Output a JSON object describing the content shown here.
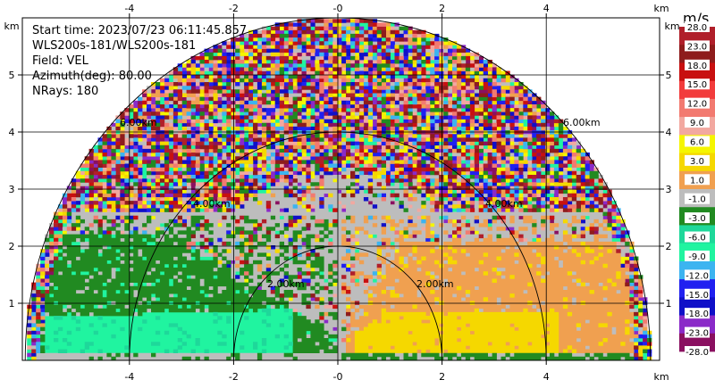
{
  "info": {
    "start_time": "Start time: 2023/07/23 06:11:45.857",
    "instrument": "WLS200s-181/WLS200s-181",
    "field": "Field: VEL",
    "azimuth": "Azimuth(deg): 80.00",
    "nrays": "NRays: 180"
  },
  "colorbar": {
    "unit": "m/s",
    "labels": [
      "28.0",
      "23.0",
      "18.0",
      "15.0",
      "12.0",
      "9.0",
      "6.0",
      "3.0",
      "1.0",
      "-1.0",
      "-3.0",
      "-6.0",
      "-9.0",
      "-12.0",
      "-15.0",
      "-18.0",
      "-23.0",
      "-28.0"
    ],
    "colors": [
      "#b01f2a",
      "#8e1c1c",
      "#c81010",
      "#f23c3c",
      "#f27a70",
      "#f2a8a0",
      "#f5f500",
      "#f5d800",
      "#f0a050",
      "#bdbdbd",
      "#218a21",
      "#1ed89a",
      "#20f4a0",
      "#3cb4f0",
      "#2020f0",
      "#1010c8",
      "#8a2ac8",
      "#8a1060"
    ]
  },
  "range_labels": [
    "2.00km",
    "2.00km",
    "4.00km",
    "4.00km",
    "6.00km",
    "6.00km"
  ],
  "chart_data": {
    "type": "heatmap",
    "title": "",
    "subtitle": "",
    "plot_kind": "RHI (range-height) sector scan, Doppler radial velocity",
    "xlabel": "km",
    "ylabel": "km",
    "xlim": [
      -6,
      6
    ],
    "ylim": [
      0,
      6
    ],
    "x_ticks": [
      "-4",
      "-2",
      "-0",
      "2",
      "4"
    ],
    "y_ticks": [
      "1",
      "2",
      "3",
      "4",
      "5"
    ],
    "x_axis_unit_label": "km",
    "y_axis_unit_label": "km",
    "range_rings_km": [
      2,
      4,
      6
    ],
    "grid": true,
    "field": "VEL",
    "units": "m/s",
    "color_range": [
      -28.0,
      28.0
    ],
    "dominant_regions": [
      {
        "region": "left, 0-2 km altitude, 1.5-6 km range",
        "approx_velocity": -5
      },
      {
        "region": "left near-surface band",
        "approx_velocity": -2
      },
      {
        "region": "right, 0-2 km altitude, 0-5.5 km range",
        "approx_velocity": 6
      },
      {
        "region": "right outer halo",
        "approx_velocity": 2
      },
      {
        "region": "center column near 0 km",
        "approx_velocity": 0
      },
      {
        "region": "far range above 2.5 km",
        "approx_velocity": "noise"
      }
    ]
  }
}
